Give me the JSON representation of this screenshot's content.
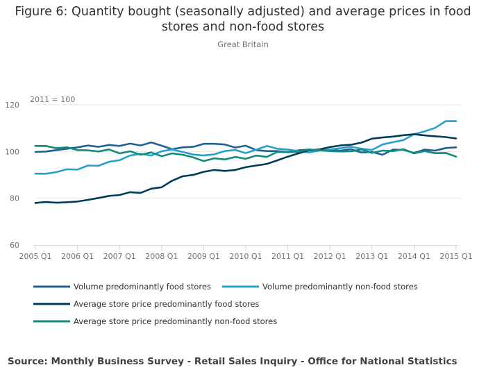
{
  "title": "Figure 6: Quantity bought (seasonally adjusted) and average prices in food stores and non-food stores",
  "subtitle": "Great Britain",
  "source": "Source: Monthly Business Survey - Retail Sales Inquiry - Office for National Statistics",
  "colors": {
    "grid": "#e6e6e6",
    "axis": "#ccd6eb",
    "text": "#707071"
  },
  "chart_data": {
    "type": "line",
    "annotation": "2011 = 100",
    "ylim": [
      60,
      120
    ],
    "yticks": [
      60,
      80,
      100,
      120
    ],
    "grid": true,
    "legend_position": "bottom",
    "x": [
      "2005 Q1",
      "2005 Q2",
      "2005 Q3",
      "2005 Q4",
      "2006 Q1",
      "2006 Q2",
      "2006 Q3",
      "2006 Q4",
      "2007 Q1",
      "2007 Q2",
      "2007 Q3",
      "2007 Q4",
      "2008 Q1",
      "2008 Q2",
      "2008 Q3",
      "2008 Q4",
      "2009 Q1",
      "2009 Q2",
      "2009 Q3",
      "2009 Q4",
      "2010 Q1",
      "2010 Q2",
      "2010 Q3",
      "2010 Q4",
      "2011 Q1",
      "2011 Q2",
      "2011 Q3",
      "2011 Q4",
      "2012 Q1",
      "2012 Q2",
      "2012 Q3",
      "2012 Q4",
      "2013 Q1",
      "2013 Q2",
      "2013 Q3",
      "2013 Q4",
      "2014 Q1",
      "2014 Q2",
      "2014 Q3",
      "2014 Q4",
      "2015 Q1"
    ],
    "xtick_labels": [
      "2005 Q1",
      "2006 Q1",
      "2007 Q1",
      "2008 Q1",
      "2009 Q1",
      "2010 Q1",
      "2011 Q1",
      "2012 Q1",
      "2013 Q1",
      "2014 Q1",
      "2015 Q1"
    ],
    "series": [
      {
        "name": "Volume predominantly food stores",
        "color": "#206095",
        "values": [
          99.8,
          100.0,
          100.6,
          101.2,
          101.8,
          102.6,
          102.0,
          102.8,
          102.4,
          103.4,
          102.6,
          103.9,
          102.5,
          101.0,
          101.8,
          102.0,
          103.3,
          103.3,
          103.0,
          101.7,
          102.5,
          100.6,
          100.2,
          100.2,
          99.8,
          100.5,
          100.8,
          100.6,
          100.5,
          100.4,
          101.0,
          99.6,
          99.8,
          98.6,
          100.8,
          100.7,
          99.4,
          100.8,
          100.4,
          101.5,
          101.8
        ]
      },
      {
        "name": "Volume predominantly non-food stores",
        "color": "#27a0cc",
        "values": [
          90.5,
          90.5,
          91.2,
          92.4,
          92.3,
          94.0,
          93.9,
          95.6,
          96.3,
          98.3,
          99.0,
          98.3,
          100.1,
          100.9,
          99.8,
          98.7,
          98.3,
          98.8,
          100.2,
          100.7,
          99.3,
          100.8,
          102.4,
          101.2,
          100.8,
          100.2,
          99.6,
          100.4,
          100.9,
          101.4,
          102.0,
          101.2,
          100.7,
          103.0,
          104.0,
          104.9,
          107.4,
          108.6,
          110.1,
          113.0,
          113.0
        ]
      },
      {
        "name": "Average store price predominantly food stores",
        "color": "#003c57",
        "values": [
          78.0,
          78.4,
          78.1,
          78.3,
          78.6,
          79.3,
          80.1,
          81.0,
          81.4,
          82.6,
          82.3,
          84.1,
          84.7,
          87.5,
          89.4,
          90.0,
          91.3,
          92.1,
          91.7,
          92.1,
          93.3,
          94.0,
          94.7,
          96.2,
          97.8,
          99.2,
          100.5,
          100.9,
          101.9,
          102.6,
          102.9,
          103.8,
          105.5,
          106.0,
          106.4,
          107.0,
          107.4,
          106.9,
          106.5,
          106.2,
          105.6
        ]
      },
      {
        "name": "Average store price predominantly non-food stores",
        "color": "#118c7b",
        "values": [
          102.4,
          102.4,
          101.4,
          101.8,
          100.6,
          100.5,
          100.0,
          100.9,
          99.2,
          100.1,
          98.6,
          99.6,
          98.0,
          99.2,
          98.6,
          97.5,
          95.9,
          97.1,
          96.6,
          97.7,
          96.9,
          98.3,
          97.7,
          99.8,
          99.7,
          99.9,
          100.9,
          100.5,
          100.2,
          100.0,
          100.1,
          100.9,
          99.4,
          100.4,
          100.2,
          101.0,
          99.2,
          100.2,
          99.3,
          99.4,
          97.8
        ]
      }
    ]
  }
}
